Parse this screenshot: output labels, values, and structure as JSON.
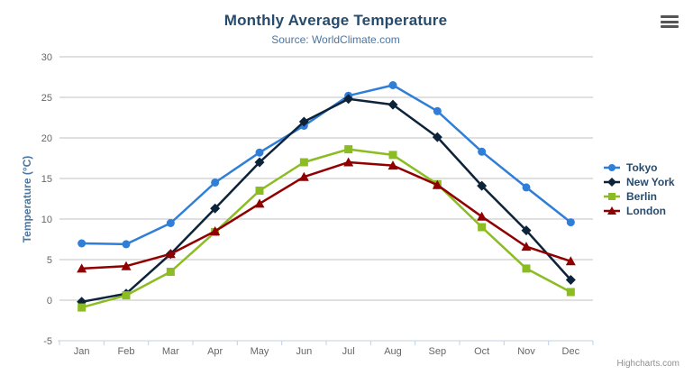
{
  "chart_data": {
    "type": "line",
    "title": "Monthly Average Temperature",
    "subtitle": "Source: WorldClimate.com",
    "xlabel": "",
    "ylabel": "Temperature (°C)",
    "ylim": [
      -5,
      30
    ],
    "ytick_interval": 5,
    "y_tick_labels": [
      "30",
      "25",
      "20",
      "15",
      "10",
      "5",
      "0",
      "-5"
    ],
    "grid": true,
    "legend_position": "right",
    "categories": [
      "Jan",
      "Feb",
      "Mar",
      "Apr",
      "May",
      "Jun",
      "Jul",
      "Aug",
      "Sep",
      "Oct",
      "Nov",
      "Dec"
    ],
    "series": [
      {
        "name": "Tokyo",
        "color": "#2f7ed8",
        "marker": "circle",
        "values": [
          7.0,
          6.9,
          9.5,
          14.5,
          18.2,
          21.5,
          25.2,
          26.5,
          23.3,
          18.3,
          13.9,
          9.6
        ]
      },
      {
        "name": "New York",
        "color": "#0d233a",
        "marker": "diamond",
        "values": [
          -0.2,
          0.8,
          5.7,
          11.3,
          17.0,
          22.0,
          24.8,
          24.1,
          20.1,
          14.1,
          8.6,
          2.5
        ]
      },
      {
        "name": "Berlin",
        "color": "#8bbc21",
        "marker": "square",
        "values": [
          -0.9,
          0.6,
          3.5,
          8.4,
          13.5,
          17.0,
          18.6,
          17.9,
          14.3,
          9.0,
          3.9,
          1.0
        ]
      },
      {
        "name": "London",
        "color": "#910000",
        "marker": "triangle",
        "values": [
          3.9,
          4.2,
          5.7,
          8.5,
          11.9,
          15.2,
          17.0,
          16.6,
          14.2,
          10.3,
          6.6,
          4.8
        ]
      }
    ]
  },
  "icons": {
    "export_menu": "hamburger-icon"
  },
  "credits": {
    "label": "Highcharts.com"
  },
  "colors": {
    "background": "#ffffff",
    "title": "#274b6d",
    "subtitle": "#4d759e",
    "axis_title": "#4d759e",
    "axis_label": "#666666",
    "grid": "#c0c0c0",
    "axis_line": "#c0d0e0",
    "tick": "#c0d0e0",
    "legend_text": "#274b6d",
    "credits": "#909090",
    "export_icon": "#555555"
  }
}
